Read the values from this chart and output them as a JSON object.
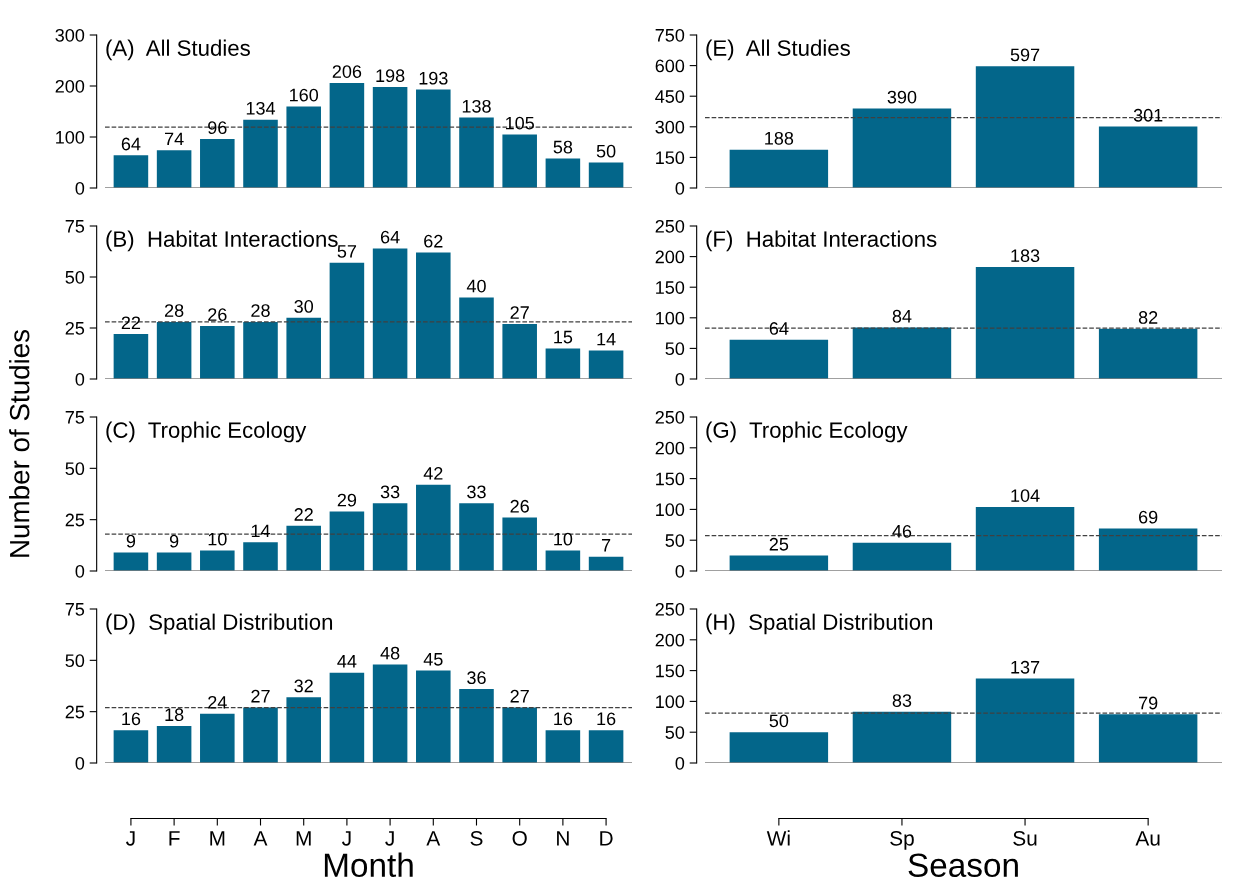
{
  "chart_data": [
    {
      "type": "bar",
      "title": "(A)  All Studies",
      "categories": [
        null,
        null,
        null,
        null,
        null,
        null,
        null,
        null,
        null,
        null,
        null,
        null
      ],
      "values": [
        64,
        74,
        96,
        134,
        160,
        206,
        198,
        193,
        138,
        105,
        58,
        50
      ],
      "color": "#03668a",
      "ylim": [
        0,
        300
      ],
      "yticks": [
        0,
        100,
        200,
        300
      ],
      "data_labels": true,
      "grid": false,
      "legend": false,
      "tick_labels": "y",
      "ref_lines": [
        {
          "axis": "y",
          "value": 119.5,
          "color": "#404040",
          "line_style": "dashed"
        }
      ]
    },
    {
      "type": "bar",
      "title": "(B)  Habitat Interactions",
      "categories": [
        null,
        null,
        null,
        null,
        null,
        null,
        null,
        null,
        null,
        null,
        null,
        null
      ],
      "values": [
        22,
        28,
        26,
        28,
        30,
        57,
        64,
        62,
        40,
        27,
        15,
        14
      ],
      "color": "#03668a",
      "ylim": [
        0,
        75
      ],
      "yticks": [
        0,
        25,
        50,
        75
      ],
      "data_labels": true,
      "grid": false,
      "legend": false,
      "tick_labels": "y",
      "ylabel": "Number of Studies",
      "ref_lines": [
        {
          "axis": "y",
          "value": 28,
          "color": "#404040",
          "line_style": "dashed"
        }
      ]
    },
    {
      "type": "bar",
      "title": "(C)  Trophic Ecology",
      "categories": [
        null,
        null,
        null,
        null,
        null,
        null,
        null,
        null,
        null,
        null,
        null,
        null
      ],
      "values": [
        9,
        9,
        10,
        14,
        22,
        29,
        33,
        42,
        33,
        26,
        10,
        7
      ],
      "color": "#03668a",
      "ylim": [
        0,
        75
      ],
      "yticks": [
        0,
        25,
        50,
        75
      ],
      "data_labels": true,
      "grid": false,
      "legend": false,
      "tick_labels": "y",
      "ref_lines": [
        {
          "axis": "y",
          "value": 18,
          "color": "#404040",
          "line_style": "dashed"
        }
      ]
    },
    {
      "type": "bar",
      "title": "(D)  Spatial Distribution",
      "categories": [
        "J",
        "F",
        "M",
        "A",
        "M",
        "J",
        "J",
        "A",
        "S",
        "O",
        "N",
        "D"
      ],
      "values": [
        16,
        18,
        24,
        27,
        32,
        44,
        48,
        45,
        36,
        27,
        16,
        16
      ],
      "color": "#03668a",
      "ylim": [
        0,
        75
      ],
      "yticks": [
        0,
        25,
        50,
        75
      ],
      "data_labels": true,
      "grid": false,
      "legend": false,
      "xlabel": "Month",
      "ref_lines": [
        {
          "axis": "y",
          "value": 27,
          "color": "#404040",
          "line_style": "dashed"
        }
      ]
    },
    {
      "type": "bar",
      "title": "(E)  All Studies",
      "categories": [
        null,
        null,
        null,
        null
      ],
      "values": [
        188,
        390,
        597,
        301
      ],
      "color": "#03668a",
      "ylim": [
        0,
        750
      ],
      "yticks": [
        0,
        150,
        300,
        450,
        600,
        750
      ],
      "data_labels": true,
      "grid": false,
      "legend": false,
      "tick_labels": "y",
      "ref_lines": [
        {
          "axis": "y",
          "value": 345.5,
          "color": "#404040",
          "line_style": "dashed"
        }
      ]
    },
    {
      "type": "bar",
      "title": "(F)  Habitat Interactions",
      "categories": [
        null,
        null,
        null,
        null
      ],
      "values": [
        64,
        84,
        183,
        82
      ],
      "color": "#03668a",
      "ylim": [
        0,
        250
      ],
      "yticks": [
        0,
        50,
        100,
        150,
        200,
        250
      ],
      "data_labels": true,
      "grid": false,
      "legend": false,
      "tick_labels": "y",
      "ref_lines": [
        {
          "axis": "y",
          "value": 83,
          "color": "#404040",
          "line_style": "dashed"
        }
      ]
    },
    {
      "type": "bar",
      "title": "(G)  Trophic Ecology",
      "categories": [
        null,
        null,
        null,
        null
      ],
      "values": [
        25,
        46,
        104,
        69
      ],
      "color": "#03668a",
      "ylim": [
        0,
        250
      ],
      "yticks": [
        0,
        50,
        100,
        150,
        200,
        250
      ],
      "data_labels": true,
      "grid": false,
      "legend": false,
      "tick_labels": "y",
      "ref_lines": [
        {
          "axis": "y",
          "value": 57.5,
          "color": "#404040",
          "line_style": "dashed"
        }
      ]
    },
    {
      "type": "bar",
      "title": "(H)  Spatial Distribution",
      "categories": [
        "Wi",
        "Sp",
        "Su",
        "Au"
      ],
      "values": [
        50,
        83,
        137,
        79
      ],
      "color": "#03668a",
      "ylim": [
        0,
        250
      ],
      "yticks": [
        0,
        50,
        100,
        150,
        200,
        250
      ],
      "data_labels": true,
      "grid": false,
      "legend": false,
      "xlabel": "Season",
      "ref_lines": [
        {
          "axis": "y",
          "value": 81,
          "color": "#404040",
          "line_style": "dashed"
        }
      ]
    }
  ]
}
